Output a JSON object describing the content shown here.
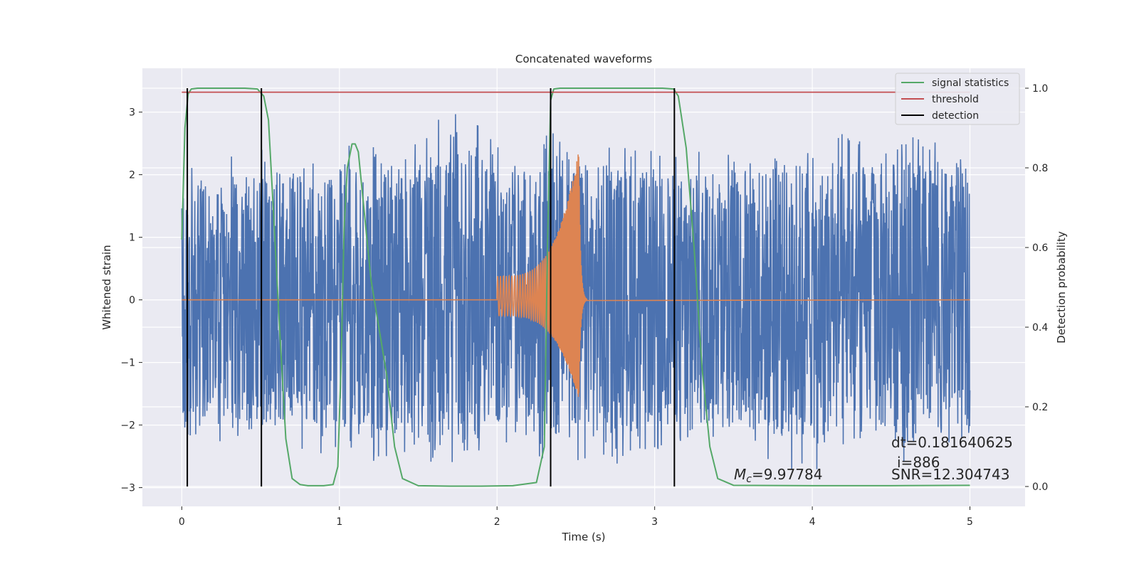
{
  "chart_data": {
    "type": "line",
    "title": "Concatenated waveforms",
    "xlabel": "Time (s)",
    "ylabel": "Whitened strain",
    "ylabel_right": "Detection probability",
    "xlim": [
      -0.25,
      5.35
    ],
    "ylim": [
      -3.3,
      3.7
    ],
    "ylim_right": [
      -0.05,
      1.05
    ],
    "xticks": [
      "0",
      "1",
      "2",
      "3",
      "4",
      "5"
    ],
    "yticks": [
      "−3",
      "−2",
      "−1",
      "0",
      "1",
      "2",
      "3"
    ],
    "yticks_right": [
      "0.0",
      "0.2",
      "0.4",
      "0.6",
      "0.8",
      "1.0"
    ],
    "grid": true,
    "legend_placement": "top-right",
    "series": [
      {
        "name": "signal statistics",
        "axis": "right",
        "color": "#55a868",
        "x": [
          0,
          0.02,
          0.04,
          0.06,
          0.1,
          0.2,
          0.3,
          0.4,
          0.48,
          0.52,
          0.55,
          0.58,
          0.62,
          0.66,
          0.7,
          0.75,
          0.8,
          0.9,
          0.96,
          0.99,
          1.01,
          1.03,
          1.05,
          1.08,
          1.1,
          1.12,
          1.15,
          1.2,
          1.25,
          1.3,
          1.35,
          1.4,
          1.5,
          1.7,
          1.9,
          2.1,
          2.25,
          2.3,
          2.32,
          2.34,
          2.36,
          2.4,
          2.5,
          2.8,
          3.05,
          3.12,
          3.15,
          3.2,
          3.25,
          3.3,
          3.35,
          3.4,
          3.5,
          4.0,
          4.5,
          5.0
        ],
        "y": [
          0.62,
          0.9,
          0.985,
          0.998,
          1.0,
          1.0,
          1.0,
          1.0,
          0.998,
          0.98,
          0.92,
          0.7,
          0.4,
          0.12,
          0.02,
          0.005,
          0.002,
          0.002,
          0.005,
          0.05,
          0.3,
          0.65,
          0.8,
          0.86,
          0.86,
          0.84,
          0.72,
          0.52,
          0.4,
          0.28,
          0.1,
          0.02,
          0.002,
          0.001,
          0.001,
          0.002,
          0.01,
          0.1,
          0.6,
          0.97,
          0.998,
          1.0,
          1.0,
          1.0,
          1.0,
          0.998,
          0.98,
          0.85,
          0.6,
          0.3,
          0.1,
          0.02,
          0.003,
          0.002,
          0.002,
          0.003
        ]
      },
      {
        "name": "threshold",
        "axis": "right",
        "color": "#c44e52",
        "x": [
          0,
          5
        ],
        "y": [
          0.99,
          0.99
        ]
      },
      {
        "name": "detection",
        "axis": "right",
        "color": "#000000",
        "x": [
          0.035,
          0.505,
          2.34,
          3.125
        ],
        "y_range": [
          0,
          1
        ]
      }
    ],
    "strain_envelope": {
      "color": "#4c72b0",
      "x_range": [
        0,
        5
      ],
      "ymax": [
        [
          0.0,
          2.2
        ],
        [
          0.2,
          2.2
        ],
        [
          0.4,
          2.4
        ],
        [
          0.6,
          2.5
        ],
        [
          0.8,
          2.4
        ],
        [
          1.0,
          2.5
        ],
        [
          1.2,
          2.7
        ],
        [
          1.4,
          2.5
        ],
        [
          1.6,
          2.9
        ],
        [
          1.8,
          3.0
        ],
        [
          2.0,
          2.5
        ],
        [
          2.2,
          2.4
        ],
        [
          2.4,
          2.8
        ],
        [
          2.6,
          2.6
        ],
        [
          2.8,
          2.5
        ],
        [
          3.0,
          2.4
        ],
        [
          3.2,
          2.4
        ],
        [
          3.4,
          2.4
        ],
        [
          3.6,
          2.4
        ],
        [
          3.8,
          2.5
        ],
        [
          4.0,
          2.5
        ],
        [
          4.2,
          2.7
        ],
        [
          4.4,
          2.7
        ],
        [
          4.6,
          2.8
        ],
        [
          4.8,
          2.5
        ],
        [
          5.0,
          2.4
        ]
      ],
      "ymin": [
        [
          0.0,
          -2.2
        ],
        [
          0.2,
          -2.3
        ],
        [
          0.4,
          -2.3
        ],
        [
          0.6,
          -2.3
        ],
        [
          0.8,
          -2.5
        ],
        [
          1.0,
          -2.5
        ],
        [
          1.2,
          -2.6
        ],
        [
          1.4,
          -2.5
        ],
        [
          1.6,
          -2.6
        ],
        [
          1.8,
          -2.8
        ],
        [
          2.0,
          -2.3
        ],
        [
          2.2,
          -2.5
        ],
        [
          2.4,
          -2.7
        ],
        [
          2.6,
          -2.6
        ],
        [
          2.8,
          -2.7
        ],
        [
          3.0,
          -2.4
        ],
        [
          3.2,
          -2.4
        ],
        [
          3.4,
          -2.5
        ],
        [
          3.6,
          -2.6
        ],
        [
          3.8,
          -2.7
        ],
        [
          4.0,
          -2.9
        ],
        [
          4.2,
          -2.5
        ],
        [
          4.4,
          -2.5
        ],
        [
          4.6,
          -2.7
        ],
        [
          4.8,
          -2.5
        ],
        [
          5.0,
          -2.6
        ]
      ]
    },
    "chirp_waveform": {
      "color": "#dd8452",
      "x_start": 2.0,
      "x_merger": 2.52,
      "x_end": 2.57,
      "amp_start": 0.38,
      "amp_peak": 2.4,
      "amp_min_peak": -1.6
    },
    "annotations": [
      {
        "text": "dt=0.181640625"
      },
      {
        "text": "i=886"
      },
      {
        "text": "=9.97784",
        "symbol": "M",
        "subscript": "c"
      },
      {
        "text": "SNR=12.304743"
      }
    ],
    "colors": {
      "background": "#eaeaf2",
      "grid": "#ffffff",
      "text": "#262626"
    }
  }
}
